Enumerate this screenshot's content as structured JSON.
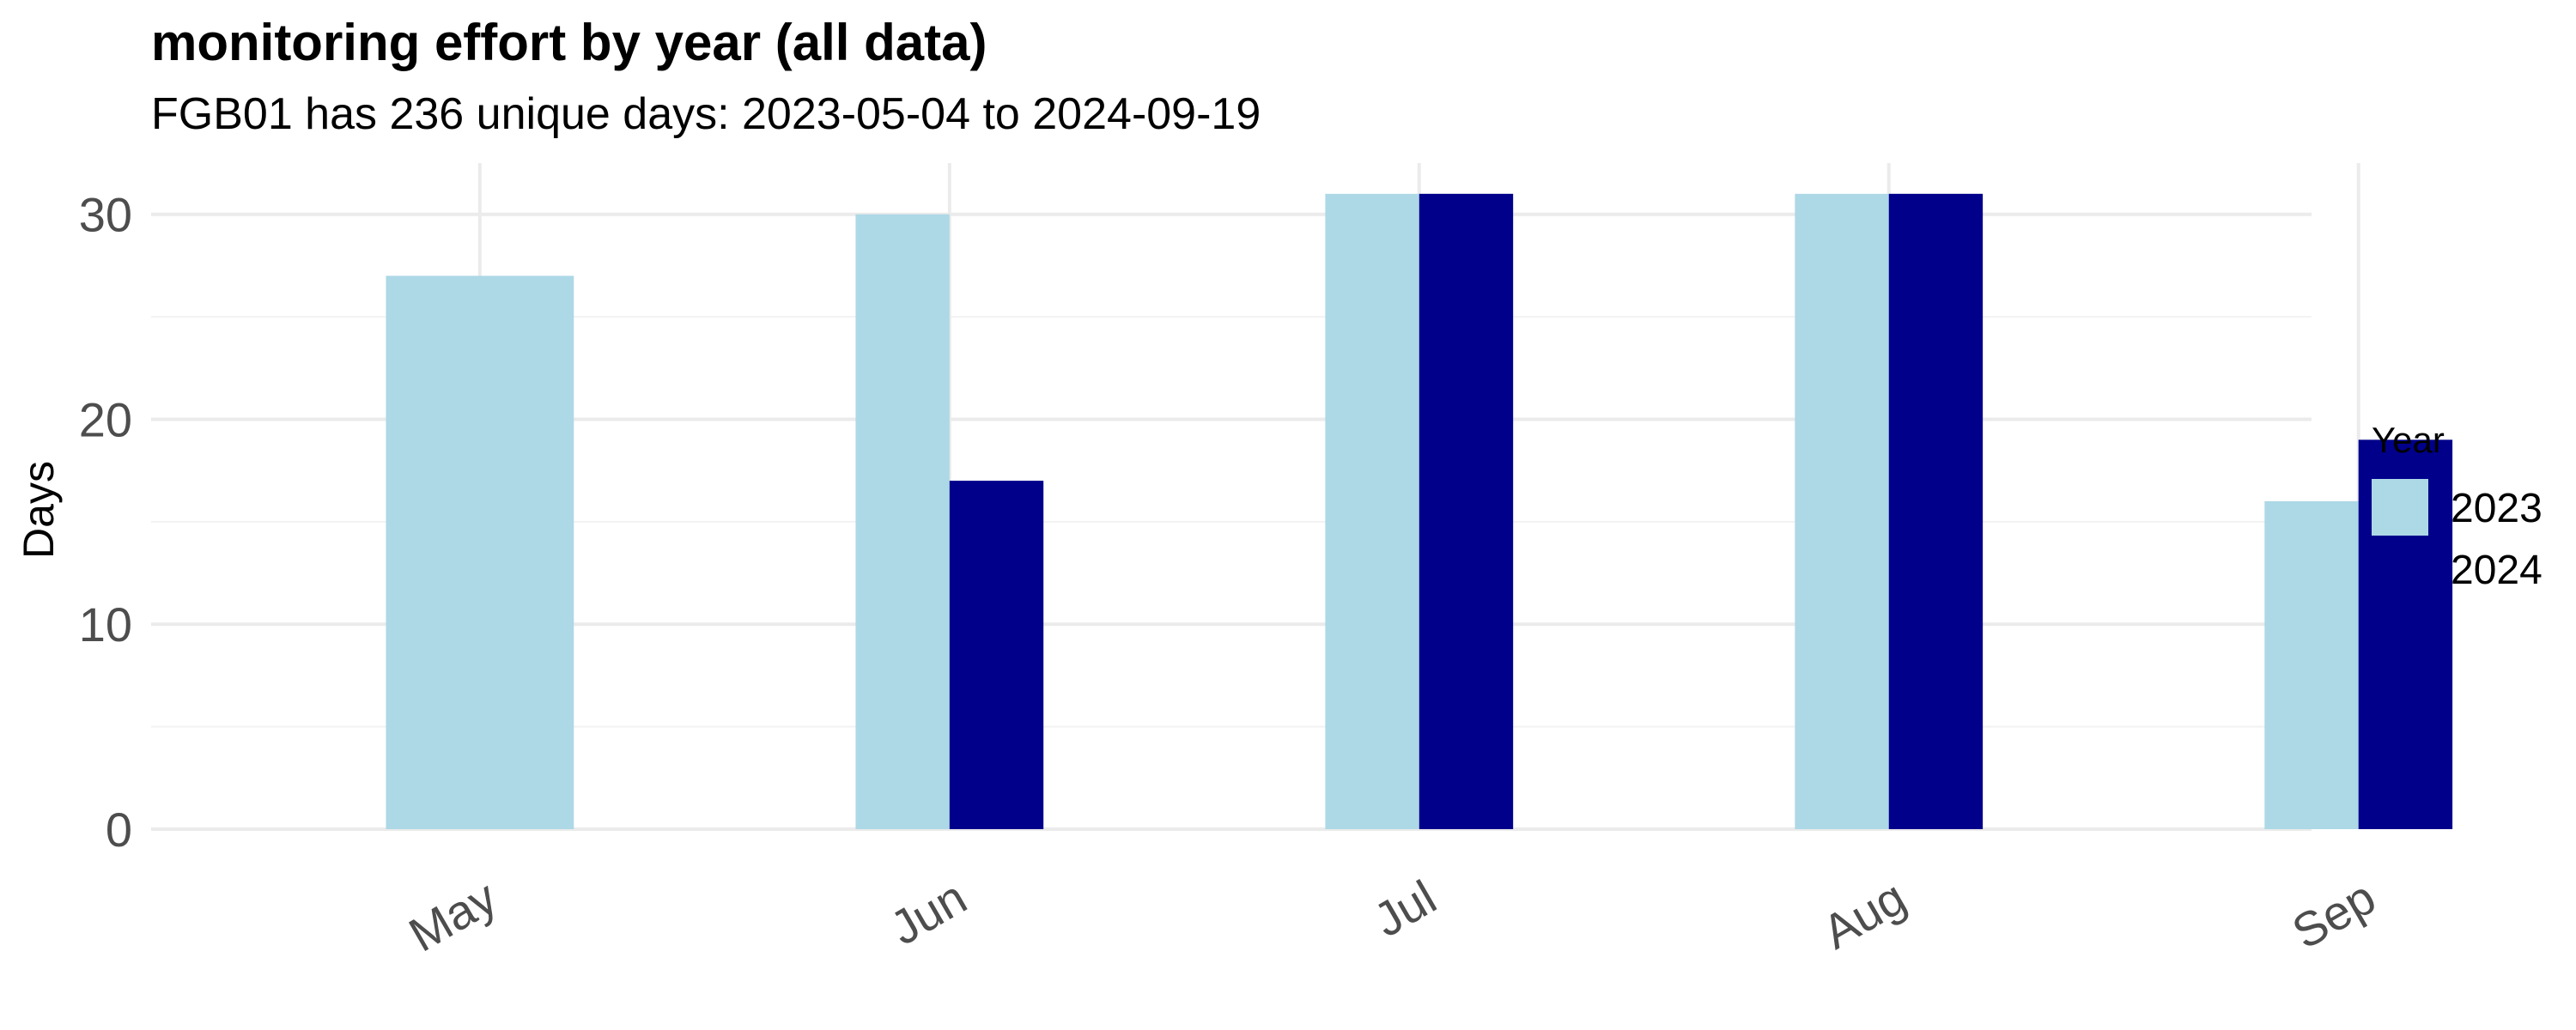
{
  "chart_data": {
    "type": "bar",
    "title": "monitoring effort by year (all data)",
    "subtitle": "FGB01 has 236 unique days: 2023-05-04 to 2024-09-19",
    "xlabel": "",
    "ylabel": "Days",
    "categories": [
      "May",
      "Jun",
      "Jul",
      "Aug",
      "Sep"
    ],
    "series": [
      {
        "name": "2023",
        "color": "#add8e6",
        "values": [
          27,
          30,
          31,
          31,
          16
        ]
      },
      {
        "name": "2024",
        "color": "#00008b",
        "values": [
          null,
          17,
          31,
          31,
          19
        ]
      }
    ],
    "ylim": [
      0,
      32.5
    ],
    "yticks": [
      0,
      10,
      20,
      30
    ],
    "grid": true,
    "legend": {
      "title": "Year",
      "position": "right"
    }
  }
}
